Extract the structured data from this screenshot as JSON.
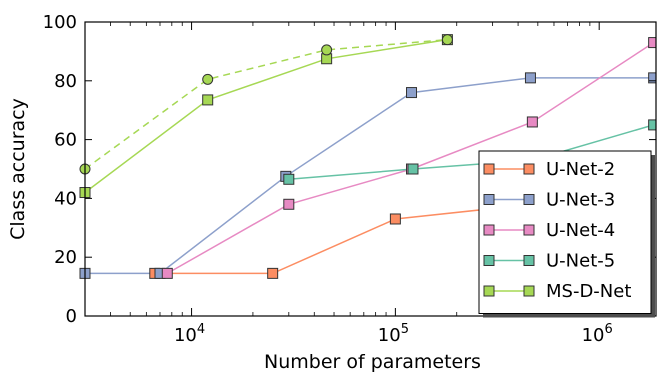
{
  "chart_data": {
    "type": "line",
    "title": "",
    "xlabel": "Number of parameters",
    "ylabel": "Class accuracy",
    "xscale": "log",
    "xlim": [
      3000,
      1900000
    ],
    "ylim": [
      0,
      100
    ],
    "yticks": [
      0,
      20,
      40,
      60,
      80,
      100
    ],
    "xticks": [
      {
        "value": 10000,
        "base": "10",
        "exp": "4"
      },
      {
        "value": 100000,
        "base": "10",
        "exp": "5"
      },
      {
        "value": 1000000,
        "base": "10",
        "exp": "6"
      }
    ],
    "grid": false,
    "legend_position": "lower-right",
    "series": [
      {
        "name": "U-Net-2",
        "color": "#fc8d62",
        "marker": "square",
        "dashed": false,
        "x": [
          6600,
          25000,
          100000,
          470000
        ],
        "y": [
          14.5,
          14.5,
          33,
          38
        ]
      },
      {
        "name": "U-Net-3",
        "color": "#8da0cb",
        "marker": "square",
        "dashed": false,
        "x": [
          3000,
          7000,
          29000,
          120000,
          460000,
          1850000
        ],
        "y": [
          14.5,
          14.5,
          47.5,
          76,
          81,
          81
        ]
      },
      {
        "name": "U-Net-4",
        "color": "#e78ac3",
        "marker": "square",
        "dashed": false,
        "x": [
          7600,
          30000,
          120000,
          470000,
          1850000
        ],
        "y": [
          14.5,
          38,
          50,
          66,
          93
        ]
      },
      {
        "name": "U-Net-5",
        "color": "#66c2a5",
        "marker": "square",
        "dashed": false,
        "x": [
          30000,
          122000,
          470000,
          1850000
        ],
        "y": [
          46.5,
          50,
          53,
          65
        ]
      },
      {
        "name": "MS-D-Net",
        "color": "#a6d854",
        "marker": "square",
        "dashed": false,
        "x": [
          3000,
          12000,
          46000,
          180000
        ],
        "y": [
          42,
          73.5,
          87.5,
          94
        ]
      },
      {
        "name": "",
        "color": "#a6d854",
        "marker": "circle",
        "dashed": true,
        "x": [
          3000,
          12000,
          46000,
          180000
        ],
        "y": [
          50,
          80.5,
          90.5,
          94
        ]
      }
    ]
  }
}
